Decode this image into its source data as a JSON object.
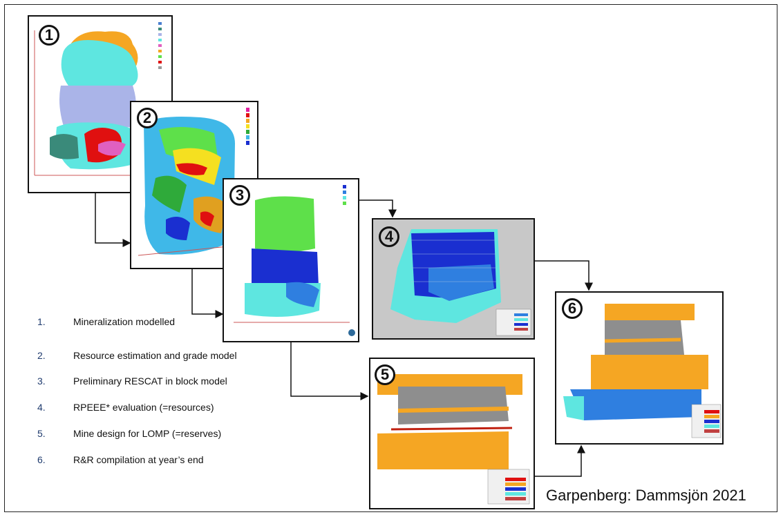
{
  "panels": [
    {
      "number": "1"
    },
    {
      "number": "2"
    },
    {
      "number": "3"
    },
    {
      "number": "4"
    },
    {
      "number": "5"
    },
    {
      "number": "6"
    }
  ],
  "steps": [
    {
      "num": "1.",
      "text": "Mineralization modelled"
    },
    {
      "num": "2.",
      "text": "Resource estimation and grade model"
    },
    {
      "num": "3.",
      "text": "Preliminary RESCAT in block model"
    },
    {
      "num": "4.",
      "text": "RPEEE* evaluation (=resources)"
    },
    {
      "num": "5.",
      "text": "Mine design for LOMP (=reserves)"
    },
    {
      "num": "6.",
      "text": "R&R compilation at year’s end"
    }
  ],
  "footer": "Garpenberg: Dammsjön 2021",
  "colors": {
    "cyan": "#5ee6e0",
    "orange": "#f5a623",
    "lavender": "#aab4e8",
    "red": "#e01010",
    "blue": "#1a2fd0",
    "light_blue": "#2f7fe0",
    "green": "#5ee04a",
    "grey": "#9a9a9a"
  }
}
